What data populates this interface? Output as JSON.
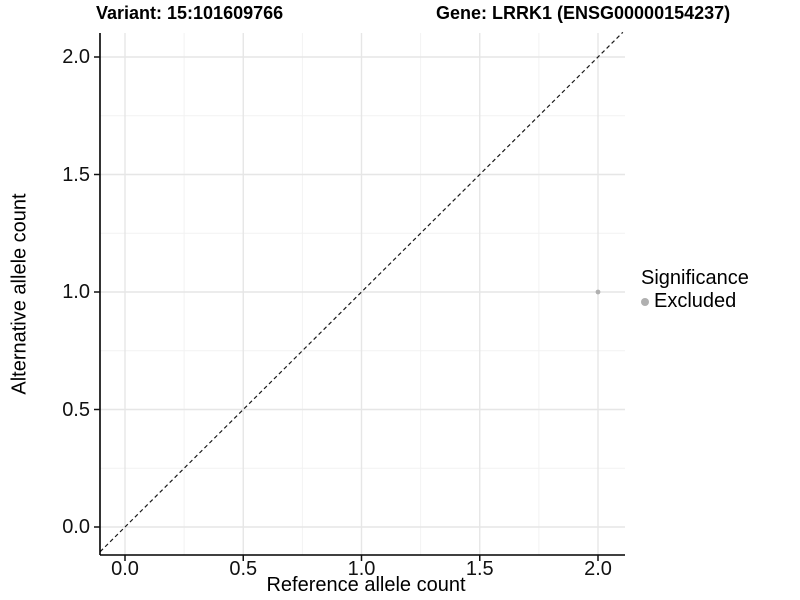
{
  "header": {
    "title_left": "Variant: 15:101609766",
    "title_right": "Gene: LRRK1 (ENSG00000154237)"
  },
  "chart_data": {
    "type": "scatter",
    "title": "Variant: 15:101609766   Gene: LRRK1 (ENSG00000154237)",
    "xlabel": "Reference allele count",
    "ylabel": "Alternative allele count",
    "x_tick_labels": [
      "0.0",
      "0.5",
      "1.0",
      "1.5",
      "2.0"
    ],
    "y_tick_labels": [
      "0.0",
      "0.5",
      "1.0",
      "1.5",
      "2.0"
    ],
    "x_tick_values": [
      0,
      0.5,
      1,
      1.5,
      2
    ],
    "y_tick_values": [
      0,
      0.5,
      1,
      1.5,
      2
    ],
    "x_minor_values": [
      0.25,
      0.75,
      1.25,
      1.75
    ],
    "y_minor_values": [
      0.25,
      0.75,
      1.25,
      1.75
    ],
    "xlim": [
      -0.105,
      2.115
    ],
    "ylim": [
      -0.12,
      2.105
    ],
    "grid": "major+minor",
    "points": [
      {
        "x": 2.0,
        "y": 1.0,
        "significance": "Excluded"
      }
    ],
    "identity_line": {
      "equation": "y = x",
      "style": "dashed",
      "color": "#1a1a1a"
    },
    "legend": {
      "title": "Significance",
      "position": "right",
      "items": [
        {
          "label": "Excluded",
          "color": "#b0b0b0"
        }
      ]
    }
  },
  "colors": {
    "background": "#ffffff",
    "point": "#b0b0b0",
    "grid_major": "#e6e6e6",
    "grid_minor": "#f2f2f2",
    "axis_line": "#000000",
    "tick_mark": "#111111"
  }
}
